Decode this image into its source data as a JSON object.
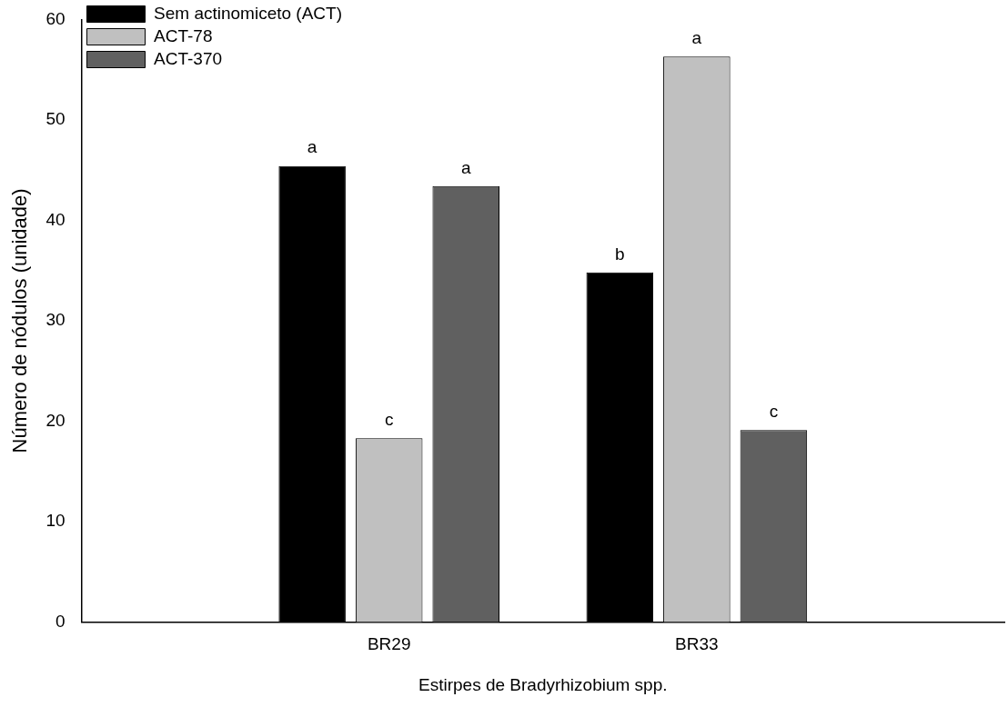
{
  "chart_data": {
    "type": "bar",
    "xlabel": "Estirpes de Bradyrhizobium spp.",
    "ylabel": "Número de nódulos (unidade)",
    "categories": [
      "BR29",
      "BR33"
    ],
    "series": [
      {
        "name": "Sem actinomiceto (ACT)",
        "color": "#000000",
        "values": [
          45.4,
          34.8
        ],
        "value_labels": [
          "a",
          "b"
        ]
      },
      {
        "name": "ACT-78",
        "color": "#c0c0c0",
        "values": [
          18.3,
          56.3
        ],
        "value_labels": [
          "c",
          "a"
        ]
      },
      {
        "name": "ACT-370",
        "color": "#606060",
        "values": [
          43.4,
          19.1
        ],
        "value_labels": [
          "a",
          "c"
        ]
      }
    ],
    "ylim": [
      0,
      60
    ],
    "yticks": [
      0,
      10,
      20,
      30,
      40,
      50,
      60
    ],
    "grid": false,
    "legend": "top left"
  }
}
